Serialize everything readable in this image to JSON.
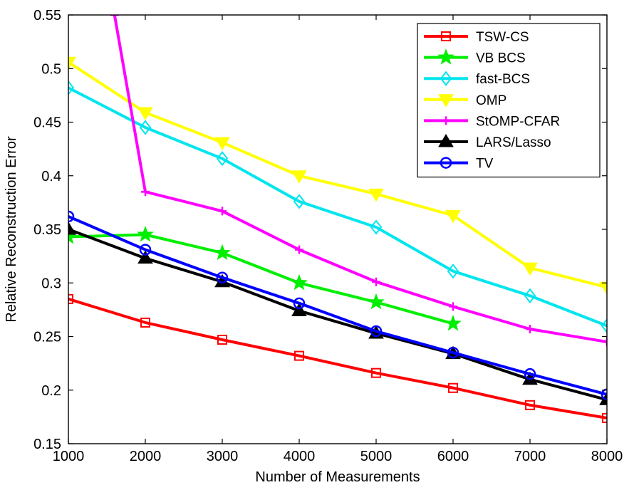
{
  "chart_data": {
    "type": "line",
    "title": "",
    "xlabel": "Number of Measurements",
    "ylabel": "Relative Reconstruction Error",
    "xlim": [
      1000,
      8000
    ],
    "ylim": [
      0.15,
      0.55
    ],
    "xticks": [
      1000,
      2000,
      3000,
      4000,
      5000,
      6000,
      7000,
      8000
    ],
    "xtick_labels": [
      "1000",
      "2000",
      "3000",
      "4000",
      "5000",
      "6000",
      "7000",
      "8000"
    ],
    "yticks": [
      0.15,
      0.2,
      0.25,
      0.3,
      0.35,
      0.4,
      0.45,
      0.5,
      0.55
    ],
    "ytick_labels": [
      "0.15",
      "0.2",
      "0.25",
      "0.3",
      "0.35",
      "0.4",
      "0.45",
      "0.5",
      "0.55"
    ],
    "grid": false,
    "legend_position": "top-right",
    "series": [
      {
        "name": "TSW-CS",
        "color": "#ff0000",
        "marker": "square",
        "x": [
          1000,
          2000,
          3000,
          4000,
          5000,
          6000,
          7000,
          8000
        ],
        "y": [
          0.285,
          0.263,
          0.247,
          0.232,
          0.216,
          0.202,
          0.186,
          0.174
        ]
      },
      {
        "name": "VB BCS",
        "color": "#00ee00",
        "marker": "star",
        "x": [
          1000,
          2000,
          3000,
          4000,
          5000,
          6000
        ],
        "y": [
          0.343,
          0.345,
          0.328,
          0.3,
          0.282,
          0.262
        ]
      },
      {
        "name": "fast-BCS",
        "color": "#00e5ee",
        "marker": "diamond",
        "x": [
          1000,
          2000,
          3000,
          4000,
          5000,
          6000,
          7000,
          8000
        ],
        "y": [
          0.482,
          0.445,
          0.416,
          0.376,
          0.352,
          0.311,
          0.288,
          0.26
        ]
      },
      {
        "name": "OMP",
        "color": "#ffff00",
        "marker": "triangle-down",
        "x": [
          1000,
          2000,
          3000,
          4000,
          5000,
          6000,
          7000,
          8000
        ],
        "y": [
          0.506,
          0.459,
          0.431,
          0.4,
          0.383,
          0.363,
          0.314,
          0.296
        ]
      },
      {
        "name": "StOMP-CFAR",
        "color": "#ff00ff",
        "marker": "plus",
        "x": [
          1600,
          2000,
          3000,
          4000,
          5000,
          6000,
          7000,
          8000
        ],
        "y": [
          0.55,
          0.385,
          0.367,
          0.331,
          0.301,
          0.278,
          0.257,
          0.245
        ]
      },
      {
        "name": "LARS/Lasso",
        "color": "#000000",
        "marker": "triangle-up",
        "x": [
          1000,
          2000,
          3000,
          4000,
          5000,
          6000,
          7000,
          8000
        ],
        "y": [
          0.35,
          0.323,
          0.301,
          0.274,
          0.253,
          0.234,
          0.21,
          0.191
        ]
      },
      {
        "name": "TV",
        "color": "#0000ff",
        "marker": "circle",
        "x": [
          1000,
          2000,
          3000,
          4000,
          5000,
          6000,
          7000,
          8000
        ],
        "y": [
          0.362,
          0.331,
          0.305,
          0.281,
          0.255,
          0.235,
          0.215,
          0.196
        ]
      }
    ]
  }
}
